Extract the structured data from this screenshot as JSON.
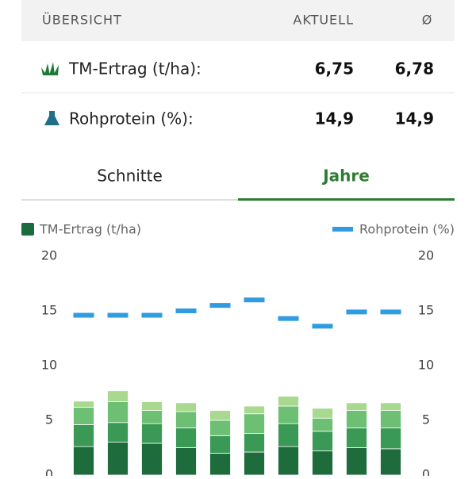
{
  "overview": {
    "header": {
      "title": "ÜBERSICHT",
      "current": "AKTUELL",
      "average": "Ø"
    },
    "rows": [
      {
        "label": "TM-Ertrag (t/ha):",
        "current": "6,75",
        "average": "6,78"
      },
      {
        "label": "Rohprotein (%):",
        "current": "14,9",
        "average": "14,9"
      }
    ]
  },
  "tabs": [
    {
      "label": "Schnitte",
      "active": false
    },
    {
      "label": "Jahre",
      "active": true
    }
  ],
  "chart_data": {
    "type": "bar",
    "ylim": [
      0,
      20
    ],
    "yticks": [
      0,
      5,
      10,
      15,
      20
    ],
    "y2lim": [
      0,
      20
    ],
    "y2ticks": [
      0,
      5,
      10,
      15,
      20
    ],
    "series": [
      {
        "name": "TM-Ertrag (t/ha)",
        "type": "stacked-bar",
        "color": "#1a6b3e",
        "segments": [
          {
            "color": "#1e6b3c",
            "values": [
              2.6,
              3.0,
              2.9,
              2.5,
              2.0,
              2.1,
              2.6,
              2.2,
              2.5,
              2.4
            ]
          },
          {
            "color": "#3a9a55",
            "values": [
              2.0,
              1.8,
              1.8,
              1.8,
              1.6,
              1.7,
              2.1,
              1.8,
              1.8,
              1.9
            ]
          },
          {
            "color": "#6cbf73",
            "values": [
              1.6,
              1.9,
              1.2,
              1.5,
              1.4,
              1.8,
              1.6,
              1.2,
              1.6,
              1.6
            ]
          },
          {
            "color": "#a8d98f",
            "values": [
              0.55,
              1.0,
              0.8,
              0.8,
              0.9,
              0.7,
              0.9,
              0.9,
              0.7,
              0.7
            ]
          }
        ]
      },
      {
        "name": "Rohprotein (%)",
        "type": "dash",
        "color": "#2f9be0",
        "axis": "y2",
        "values": [
          14.6,
          14.6,
          14.6,
          15.0,
          15.5,
          16.0,
          14.3,
          13.6,
          14.9,
          14.9
        ]
      }
    ]
  }
}
